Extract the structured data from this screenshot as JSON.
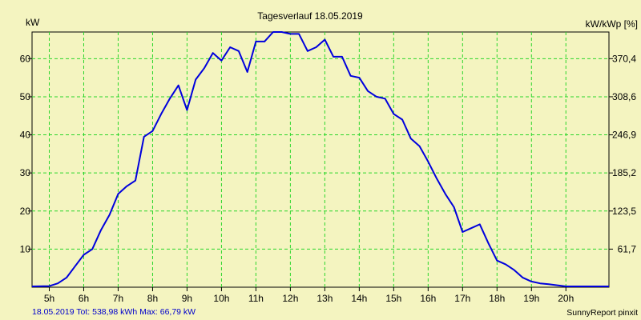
{
  "chart_data": {
    "type": "line",
    "title": "Tagesverlauf 18.05.2019",
    "ylabel_left": "kW",
    "ylabel_right": "kW/kWp [%]",
    "x_tick_labels": [
      "5h",
      "6h",
      "7h",
      "8h",
      "9h",
      "10h",
      "11h",
      "12h",
      "13h",
      "14h",
      "15h",
      "16h",
      "17h",
      "18h",
      "19h",
      "20h"
    ],
    "x_range_hours": [
      4.5,
      21.25
    ],
    "y_left_ticks": [
      10,
      20,
      30,
      40,
      50,
      60
    ],
    "y_right_tick_labels": [
      "61,7",
      "123,5",
      "185,2",
      "246,9",
      "308,6",
      "370,4"
    ],
    "ylim": [
      0,
      67
    ],
    "grid": true,
    "line_color": "#0000dd",
    "grid_color": "#2ad62a",
    "x_hours": [
      4.5,
      5.0,
      5.25,
      5.5,
      5.75,
      6.0,
      6.25,
      6.5,
      6.75,
      7.0,
      7.25,
      7.5,
      7.75,
      8.0,
      8.25,
      8.5,
      8.75,
      9.0,
      9.25,
      9.5,
      9.75,
      10.0,
      10.25,
      10.5,
      10.75,
      11.0,
      11.25,
      11.5,
      11.75,
      12.0,
      12.25,
      12.5,
      12.75,
      13.0,
      13.25,
      13.5,
      13.75,
      14.0,
      14.25,
      14.5,
      14.75,
      15.0,
      15.25,
      15.5,
      15.75,
      16.0,
      16.25,
      16.5,
      16.75,
      17.0,
      17.25,
      17.5,
      17.75,
      18.0,
      18.25,
      18.5,
      18.75,
      19.0,
      19.25,
      19.5,
      19.75,
      20.0,
      20.25,
      20.5,
      20.75,
      21.0,
      21.25
    ],
    "kw_values": [
      0.2,
      0.3,
      1.0,
      2.5,
      5.5,
      8.5,
      10.0,
      15.0,
      19.0,
      24.5,
      26.5,
      28.0,
      39.5,
      41.0,
      45.5,
      49.5,
      53.0,
      46.5,
      54.5,
      57.5,
      61.5,
      59.5,
      63.0,
      62.0,
      56.5,
      64.5,
      64.5,
      67.0,
      67.0,
      66.5,
      66.5,
      62.0,
      63.0,
      65.0,
      60.5,
      60.5,
      55.5,
      55.0,
      51.5,
      50.0,
      49.5,
      45.5,
      44.0,
      39.0,
      37.0,
      33.0,
      28.5,
      24.5,
      21.0,
      14.5,
      15.5,
      16.5,
      11.5,
      7.0,
      6.0,
      4.5,
      2.5,
      1.5,
      1.0,
      0.8,
      0.5,
      0.2,
      0.2,
      0.2,
      0.2,
      0.2,
      0.2
    ]
  },
  "footer": {
    "summary": "18.05.2019 Tot: 538,98 kWh Max: 66,79 kW",
    "summary_color": "#0000cc",
    "credit": "SunnyReport pinxit"
  }
}
